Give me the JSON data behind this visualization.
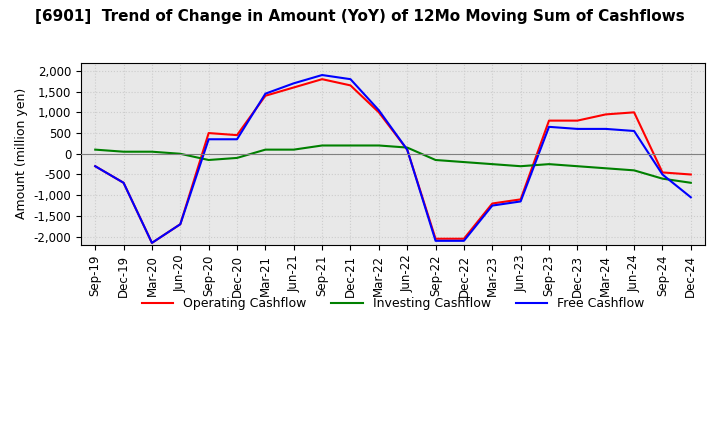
{
  "title": "[6901]  Trend of Change in Amount (YoY) of 12Mo Moving Sum of Cashflows",
  "ylabel": "Amount (million yen)",
  "xlabels": [
    "Sep-19",
    "Dec-19",
    "Mar-20",
    "Jun-20",
    "Sep-20",
    "Dec-20",
    "Mar-21",
    "Jun-21",
    "Sep-21",
    "Dec-21",
    "Mar-22",
    "Jun-22",
    "Sep-22",
    "Dec-22",
    "Mar-23",
    "Jun-23",
    "Sep-23",
    "Dec-23",
    "Mar-24",
    "Jun-24",
    "Sep-24",
    "Dec-24"
  ],
  "operating": [
    -300,
    -700,
    -2150,
    -1700,
    500,
    450,
    1400,
    1600,
    1800,
    1650,
    1000,
    100,
    -2050,
    -2050,
    -1200,
    -1100,
    800,
    800,
    950,
    1000,
    -450,
    -500
  ],
  "investing": [
    100,
    50,
    50,
    0,
    -150,
    -100,
    100,
    100,
    200,
    200,
    200,
    150,
    -150,
    -200,
    -250,
    -300,
    -250,
    -300,
    -350,
    -400,
    -600,
    -700
  ],
  "free": [
    -300,
    -700,
    -2150,
    -1700,
    350,
    350,
    1450,
    1700,
    1900,
    1800,
    1050,
    100,
    -2100,
    -2100,
    -1250,
    -1150,
    650,
    600,
    600,
    550,
    -500,
    -1050
  ],
  "ylim": [
    -2200,
    2200
  ],
  "yticks": [
    -2000,
    -1500,
    -1000,
    -500,
    0,
    500,
    1000,
    1500,
    2000
  ],
  "operating_color": "#ff0000",
  "investing_color": "#008000",
  "free_color": "#0000ff",
  "bg_color": "#ffffff",
  "grid_color": "#cccccc",
  "title_fontsize": 11,
  "label_fontsize": 9,
  "tick_fontsize": 8.5
}
